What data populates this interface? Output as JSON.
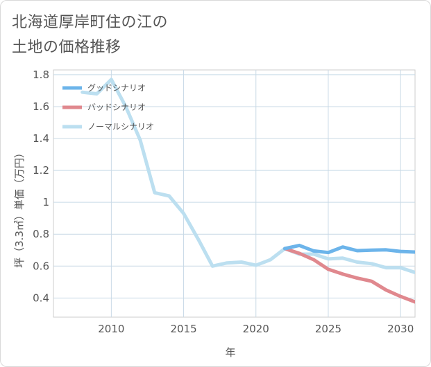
{
  "title_line1": "北海道厚岸町住の江の",
  "title_line2": "土地の価格推移",
  "chart_data": {
    "type": "line",
    "xlabel": "年",
    "ylabel": "坪（3.3㎡）単価（万円）",
    "xlim": [
      2006,
      2031
    ],
    "ylim": [
      0.28,
      1.83
    ],
    "xticks": [
      2010,
      2015,
      2020,
      2025,
      2030
    ],
    "yticks": [
      0.4,
      0.6,
      0.8,
      1,
      1.2,
      1.4,
      1.6,
      1.8
    ],
    "xtick_labels": [
      "2010",
      "2015",
      "2020",
      "2025",
      "2030"
    ],
    "ytick_labels": [
      "0.4",
      "0.6",
      "0.8",
      "1",
      "1.2",
      "1.4",
      "1.6",
      "1.8"
    ],
    "legend_position": "top-left",
    "grid": true,
    "series": [
      {
        "name": "グッドシナリオ",
        "color": "#6cb4ea",
        "x": [
          2022,
          2023,
          2024,
          2025,
          2026,
          2027,
          2028,
          2029,
          2030,
          2031
        ],
        "y": [
          0.71,
          0.73,
          0.695,
          0.685,
          0.72,
          0.697,
          0.7,
          0.702,
          0.692,
          0.688
        ]
      },
      {
        "name": "バッドシナリオ",
        "color": "#e0888e",
        "x": [
          2022,
          2023,
          2024,
          2025,
          2026,
          2027,
          2028,
          2029,
          2030,
          2031
        ],
        "y": [
          0.71,
          0.68,
          0.64,
          0.58,
          0.55,
          0.525,
          0.505,
          0.45,
          0.41,
          0.375
        ]
      },
      {
        "name": "ノーマルシナリオ",
        "color": "#bcdff0",
        "x": [
          2008,
          2009,
          2010,
          2011,
          2012,
          2013,
          2014,
          2015,
          2016,
          2017,
          2018,
          2019,
          2020,
          2021,
          2022,
          2023,
          2024,
          2025,
          2026,
          2027,
          2028,
          2029,
          2030,
          2031
        ],
        "y": [
          1.69,
          1.68,
          1.77,
          1.6,
          1.39,
          1.06,
          1.04,
          0.93,
          0.77,
          0.6,
          0.62,
          0.625,
          0.605,
          0.64,
          0.71,
          0.675,
          0.675,
          0.645,
          0.65,
          0.625,
          0.615,
          0.59,
          0.59,
          0.56
        ]
      }
    ]
  }
}
